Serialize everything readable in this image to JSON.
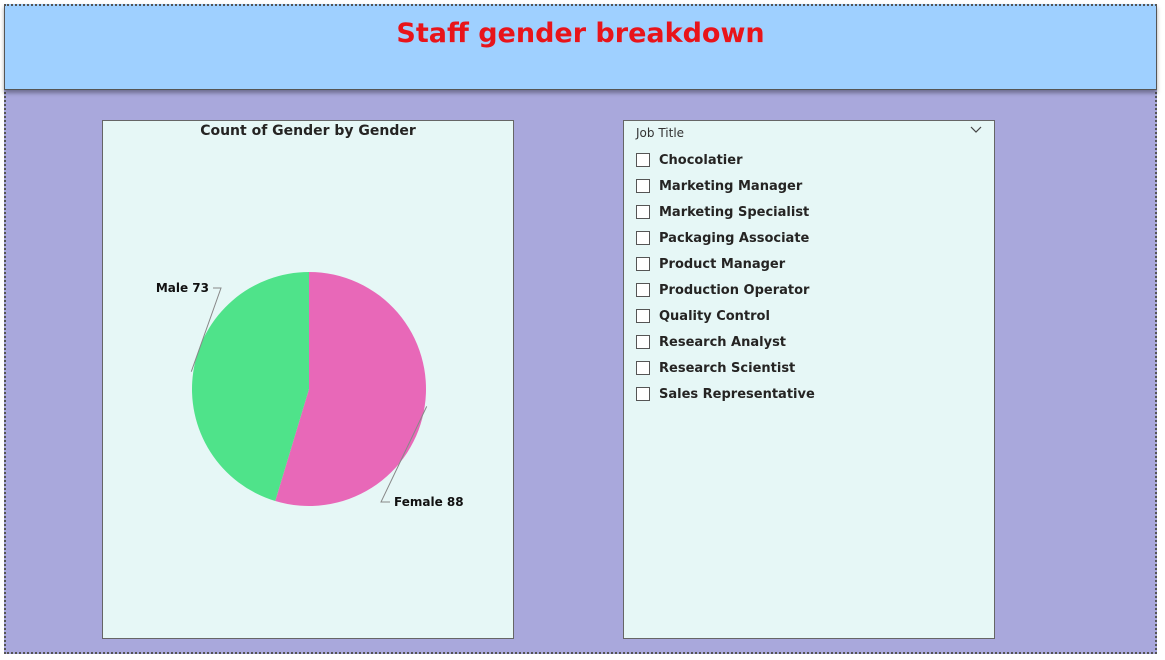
{
  "header": {
    "title": "Staff gender breakdown",
    "title_color": "#e8141a",
    "background": "#9fd0ff"
  },
  "canvas_background": "#a9a8dc",
  "card_background": "#e6f7f6",
  "chart_data": {
    "type": "pie",
    "title": "Count of Gender by Gender",
    "categories": [
      "Male",
      "Female"
    ],
    "values": [
      73,
      88
    ],
    "colors": [
      "#4fe38a",
      "#e868b8"
    ],
    "data_labels": [
      "Male 73",
      "Female 88"
    ]
  },
  "slicer": {
    "header": "Job Title",
    "chevron_icon": "chevron-down-icon",
    "items": [
      {
        "label": "Chocolatier",
        "checked": false
      },
      {
        "label": "Marketing Manager",
        "checked": false
      },
      {
        "label": "Marketing Specialist",
        "checked": false
      },
      {
        "label": "Packaging Associate",
        "checked": false
      },
      {
        "label": "Product Manager",
        "checked": false
      },
      {
        "label": "Production Operator",
        "checked": false
      },
      {
        "label": "Quality Control",
        "checked": false
      },
      {
        "label": "Research Analyst",
        "checked": false
      },
      {
        "label": "Research Scientist",
        "checked": false
      },
      {
        "label": "Sales Representative",
        "checked": false
      }
    ]
  }
}
